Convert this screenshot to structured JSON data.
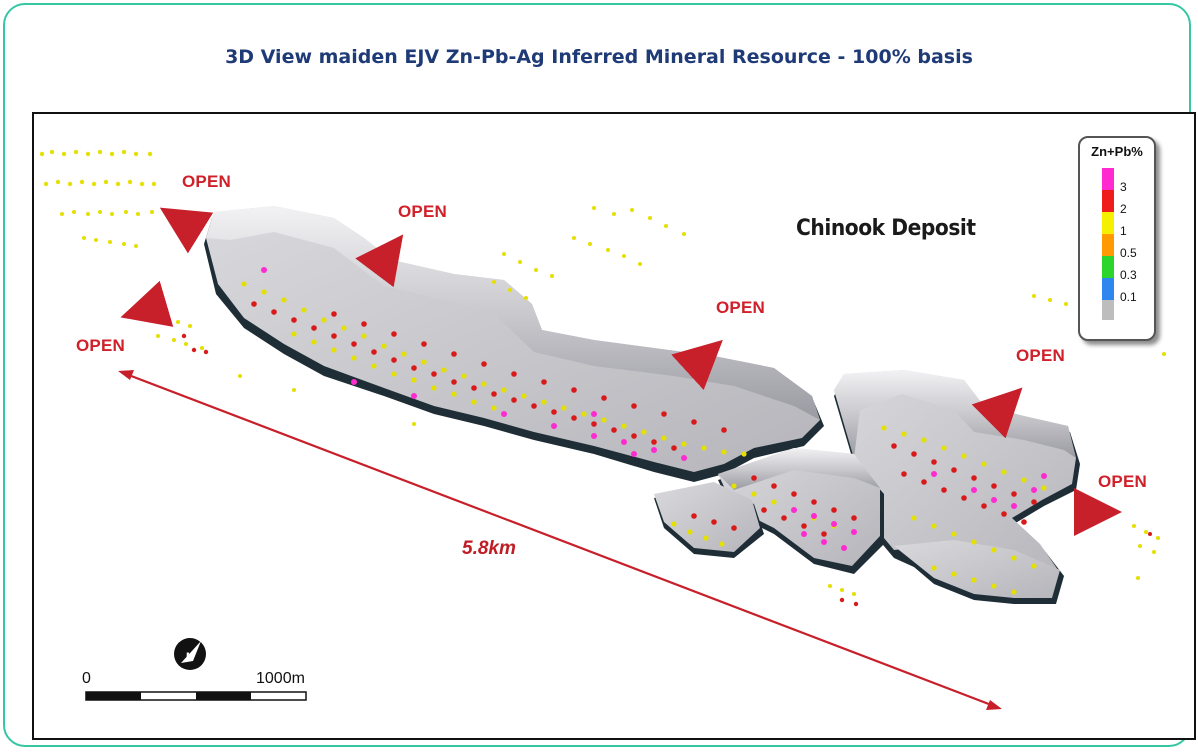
{
  "title": "3D View maiden EJV Zn-Pb-Ag Inferred Mineral Resource - 100% basis",
  "deposit_name": "Chinook Deposit",
  "open_label": "OPEN",
  "distance_label": "5.8km",
  "legend": {
    "title": "Zn+Pb%",
    "ticks": [
      "3",
      "2",
      "1",
      "0.5",
      "0.3",
      "0.1"
    ],
    "colors": [
      "#ff2bd0",
      "#ee1c1c",
      "#f4f000",
      "#ff9a00",
      "#2bd52b",
      "#2f86ee",
      "#bdbdbd"
    ]
  },
  "scale_bar": {
    "start": "0",
    "end": "1000m"
  },
  "colors": {
    "accent": "#35c6a4",
    "title": "#1f3b77",
    "arrow": "#c8202a"
  },
  "icons": {
    "north_arrow": "north-arrow-icon"
  }
}
